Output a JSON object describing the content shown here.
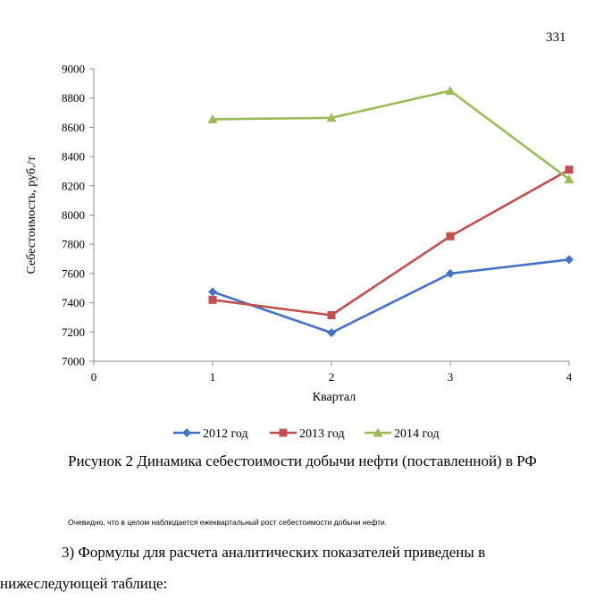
{
  "page": {
    "number": "331",
    "caption": "Рисунок 2 Динамика себестоимости добычи нефти (поставленной) в РФ",
    "note": "Очевидно, что в целом наблюдается ежеквартальный рост себестоимости добычи нефти.",
    "paragraph_line1": "3) Формулы для расчета аналитических показателей приведены в",
    "paragraph_line2": "нижеследующей таблице:"
  },
  "chart_data": {
    "type": "line",
    "title": "",
    "xlabel": "Квартал",
    "ylabel": "Себестоимость, руб./т",
    "xlim": [
      0,
      4
    ],
    "ylim": [
      7000,
      9000
    ],
    "x_ticks": [
      "0",
      "1",
      "2",
      "3",
      "4"
    ],
    "y_ticks": [
      "7000",
      "7200",
      "7400",
      "7600",
      "7800",
      "8000",
      "8200",
      "8400",
      "8600",
      "8800",
      "9000"
    ],
    "grid": false,
    "legend_position": "bottom",
    "x": [
      1,
      2,
      3,
      4
    ],
    "series": [
      {
        "name": "2012 год",
        "values": [
          7475,
          7195,
          7600,
          7695
        ],
        "color": "#4472C4",
        "marker": "diamond"
      },
      {
        "name": "2013 год",
        "values": [
          7420,
          7315,
          7855,
          8310
        ],
        "color": "#C0504D",
        "marker": "square"
      },
      {
        "name": "2014 год",
        "values": [
          8655,
          8665,
          8850,
          8245
        ],
        "color": "#9BBB59",
        "marker": "triangle"
      }
    ]
  }
}
